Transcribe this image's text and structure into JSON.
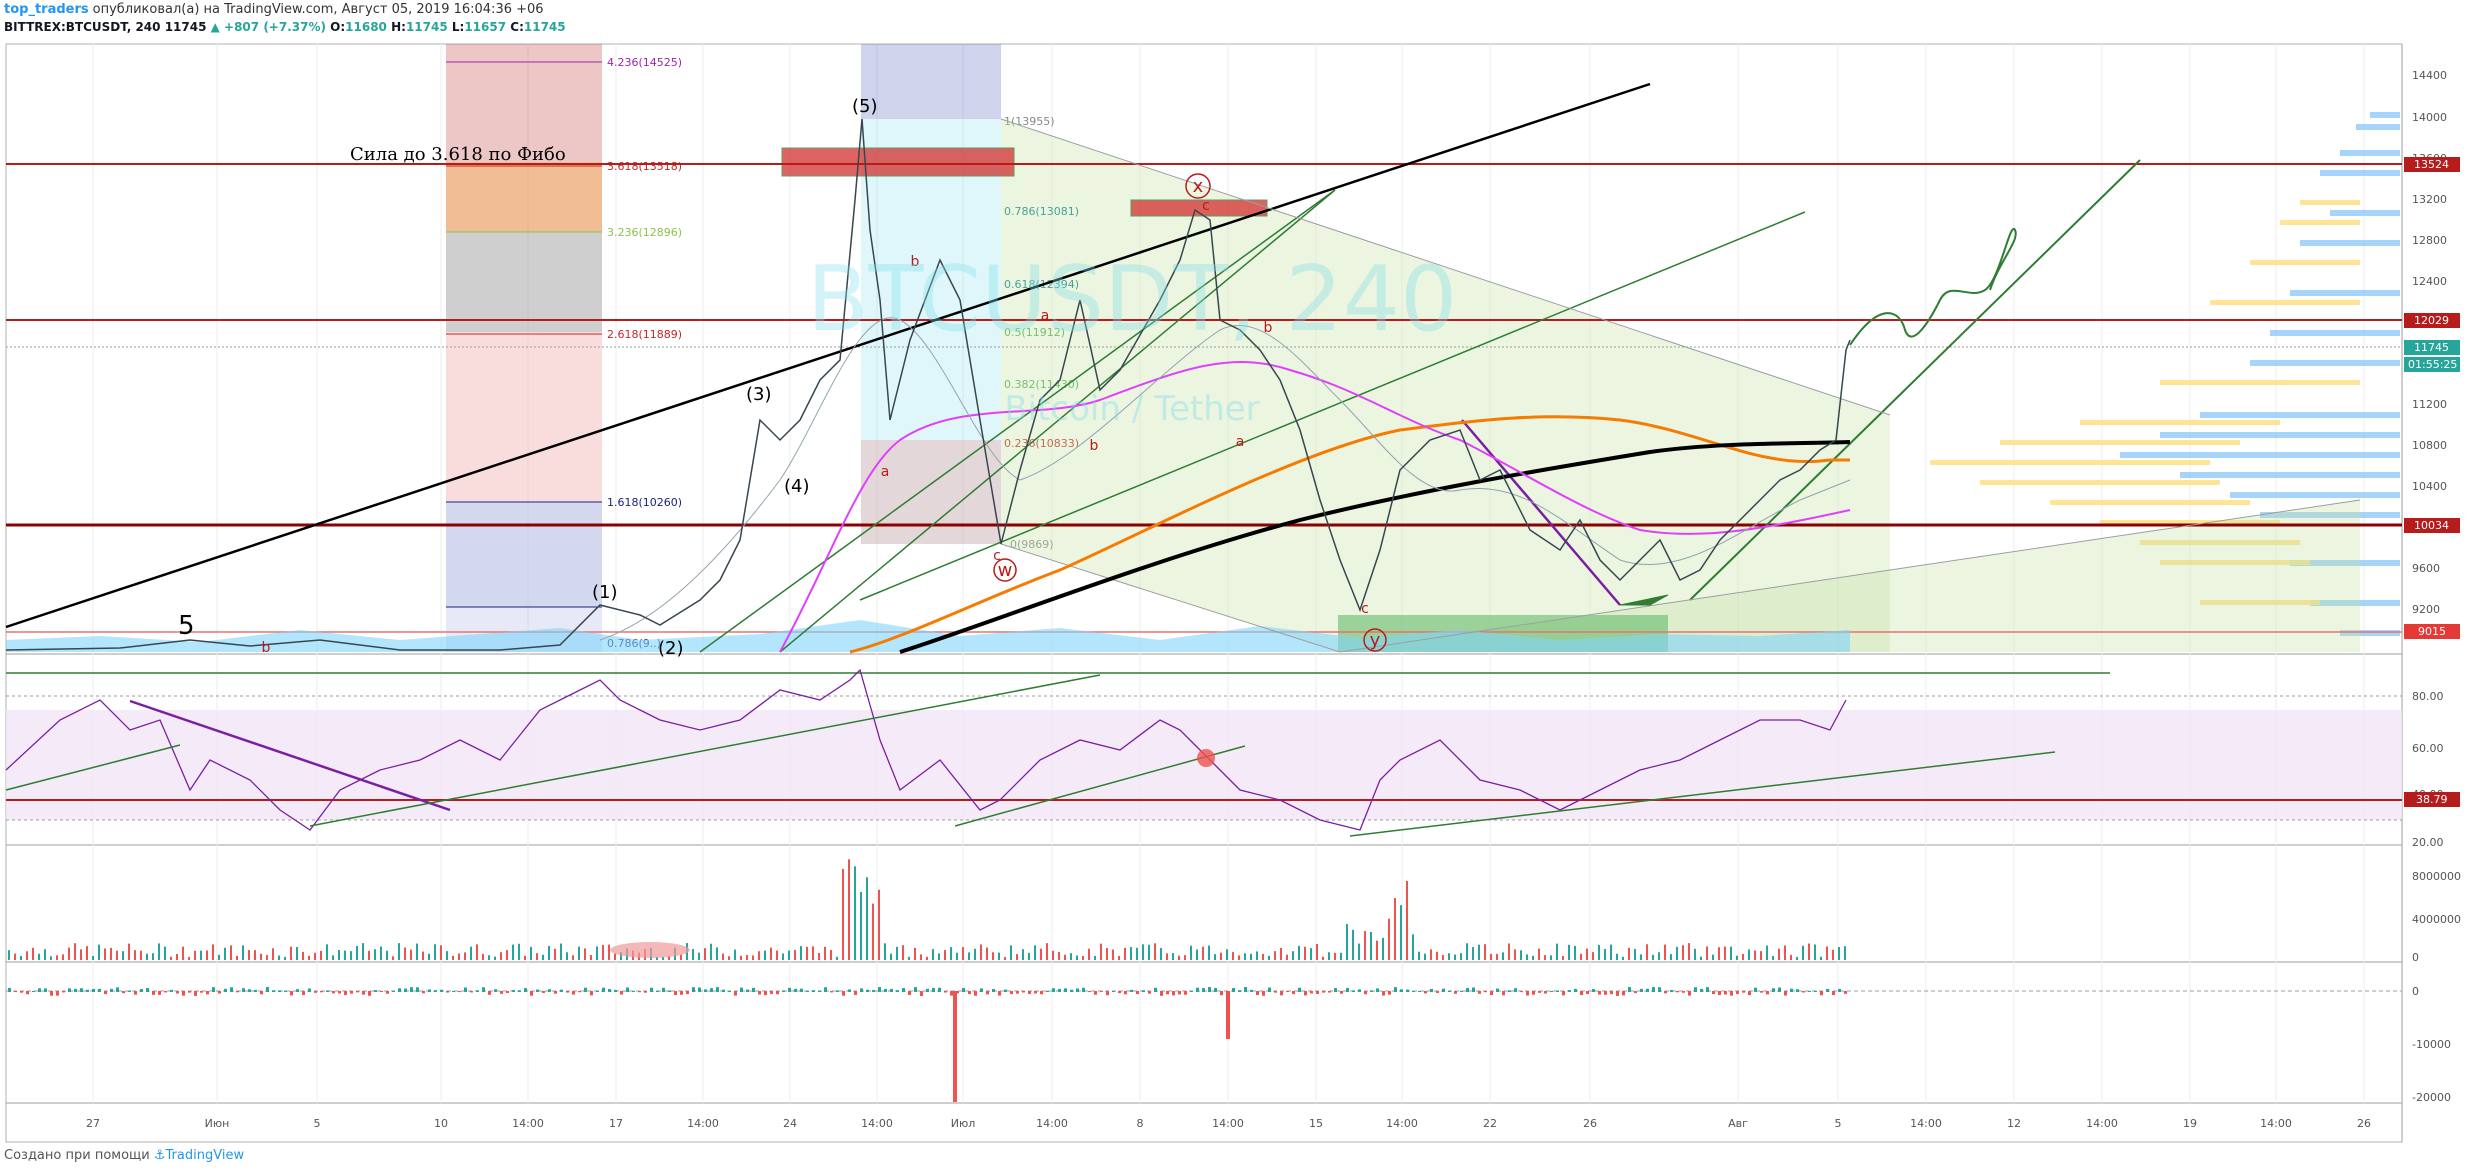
{
  "header": {
    "author": "top_traders",
    "published": "опубликовал(а) на TradingView.com, Август 05, 2019 16:04:36 +06",
    "symbol": "BITTREX:BTCUSDT, 240",
    "last": "11745",
    "change": "▲ +807 (+7.37%)",
    "o_label": "O:",
    "o": "11680",
    "h_label": "H:",
    "h": "11745",
    "l_label": "L:",
    "l": "11657",
    "c_label": "C:",
    "c": "11745"
  },
  "watermark": {
    "symbol": "BTCUSDT, 240",
    "name": "Bitcoin / Tether"
  },
  "annotation": "Сила до 3.618 по Фибо",
  "price_axis": {
    "ticks": [
      "14400",
      "14000",
      "13600",
      "13200",
      "12800",
      "12400",
      "12000",
      "11600",
      "11200",
      "10800",
      "10400",
      "10000",
      "9600",
      "9200"
    ],
    "badges": [
      {
        "text": "13524",
        "color": "#b71c1c"
      },
      {
        "text": "12029",
        "color": "#b71c1c"
      },
      {
        "text": "11745",
        "color": "#26a69a"
      },
      {
        "text": "01:55:25",
        "color": "#26a69a"
      },
      {
        "text": "10034",
        "color": "#b71c1c"
      },
      {
        "text": "9015",
        "color": "#e53935"
      }
    ]
  },
  "fib_levels": [
    {
      "label": "4.236(14525)",
      "color": "#9c27b0"
    },
    {
      "label": "3.618(13518)",
      "color": "#c62828"
    },
    {
      "label": "3.236(12896)",
      "color": "#8bc34a"
    },
    {
      "label": "2.618(11889)",
      "color": "#c62828"
    },
    {
      "label": "1.618(10260)",
      "color": "#1a237e"
    },
    {
      "label": "0.786(9..)",
      "color": "#1a237e"
    }
  ],
  "fib_retrace": [
    {
      "label": "1(13955)",
      "color": "#888888"
    },
    {
      "label": "0.786(13081)",
      "color": "#00838f"
    },
    {
      "label": "0.618(12394)",
      "color": "#00838f"
    },
    {
      "label": "0.5(11912)",
      "color": "#4caf50"
    },
    {
      "label": "0.382(11430)",
      "color": "#4caf50"
    },
    {
      "label": "0.236(10833)",
      "color": "#c62828"
    },
    {
      "label": "0(9869)",
      "color": "#888888"
    }
  ],
  "wave_labels": [
    "(5)",
    "(3)",
    "(4)",
    "(1)",
    "(2)",
    "5"
  ],
  "circle_labels": [
    "x",
    "w",
    "y",
    "b",
    "a",
    "c",
    "a",
    "b",
    "c",
    "a",
    "b",
    "c",
    "b"
  ],
  "rsi_axis": [
    "80.00",
    "60.00",
    "40.00",
    "20.00"
  ],
  "rsi_badge": "38.79",
  "volume_axis": [
    "8000000",
    "4000000",
    "0"
  ],
  "macd_axis": [
    "0",
    "-10000",
    "-20000"
  ],
  "time_axis": [
    "27",
    "Июн",
    "5",
    "10",
    "14:00",
    "17",
    "14:00",
    "24",
    "14:00",
    "Июл",
    "14:00",
    "8",
    "14:00",
    "15",
    "14:00",
    "22",
    "26",
    "Авг",
    "5",
    "14:00",
    "12",
    "14:00",
    "19",
    "14:00",
    "26"
  ],
  "footer": {
    "created": "Создано при помощи",
    "brand": "TradingView"
  },
  "colors": {
    "up": "#26a69a",
    "down": "#ef5350",
    "fib_red": "#c62828",
    "ema_orange": "#f57c00",
    "ma_purple": "#e040fb",
    "ma_black": "#000000",
    "trend_green": "#2e7d32",
    "rsi_bg": "#f3e5f5",
    "rsi_line": "#7b1fa2"
  }
}
